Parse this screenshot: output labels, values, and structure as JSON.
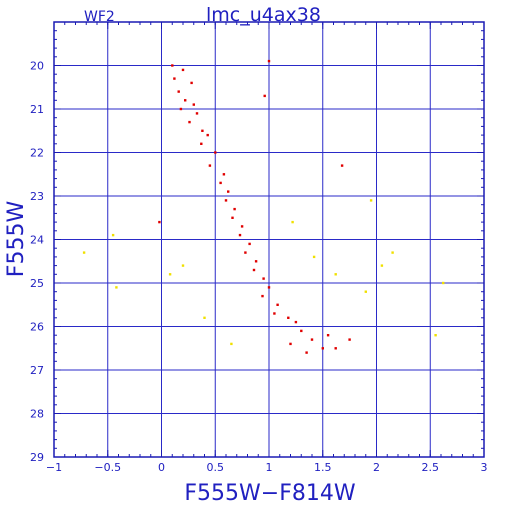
{
  "chart_data": {
    "type": "scatter",
    "title": "lmc_u4ax38",
    "chip_label": "WF2",
    "xlabel": "F555W−F814W",
    "ylabel": "F555W",
    "xlim": [
      -1,
      3
    ],
    "ylim": [
      29,
      19
    ],
    "y_inverted": true,
    "grid": true,
    "x_ticks": [
      "−1",
      "−0.5",
      "0",
      "0.5",
      "1",
      "1.5",
      "2",
      "2.5",
      "3"
    ],
    "y_ticks": [
      "20",
      "21",
      "22",
      "23",
      "24",
      "25",
      "26",
      "27",
      "28",
      "29"
    ],
    "colors": {
      "frame": "#1a1ab4",
      "grid": "#2a2ac8",
      "text": "#2020c0",
      "series_main": "#e00000",
      "series_secondary": "#f0e000"
    },
    "series": [
      {
        "color": "#e00000",
        "points": [
          [
            0.1,
            20.0
          ],
          [
            0.2,
            20.1
          ],
          [
            0.12,
            20.3
          ],
          [
            0.28,
            20.4
          ],
          [
            0.16,
            20.6
          ],
          [
            0.22,
            20.8
          ],
          [
            0.3,
            20.9
          ],
          [
            0.18,
            21.0
          ],
          [
            0.33,
            21.1
          ],
          [
            0.26,
            21.3
          ],
          [
            0.38,
            21.5
          ],
          [
            0.43,
            21.6
          ],
          [
            0.37,
            21.8
          ],
          [
            0.5,
            22.0
          ],
          [
            0.45,
            22.3
          ],
          [
            0.58,
            22.5
          ],
          [
            0.55,
            22.7
          ],
          [
            0.62,
            22.9
          ],
          [
            0.6,
            23.1
          ],
          [
            0.68,
            23.3
          ],
          [
            0.66,
            23.5
          ],
          [
            0.75,
            23.7
          ],
          [
            0.73,
            23.9
          ],
          [
            0.82,
            24.1
          ],
          [
            0.78,
            24.3
          ],
          [
            0.88,
            24.5
          ],
          [
            0.86,
            24.7
          ],
          [
            0.95,
            24.9
          ],
          [
            1.0,
            25.1
          ],
          [
            0.94,
            25.3
          ],
          [
            1.08,
            25.5
          ],
          [
            1.05,
            25.7
          ],
          [
            1.18,
            25.8
          ],
          [
            1.25,
            25.9
          ],
          [
            1.3,
            26.1
          ],
          [
            1.4,
            26.3
          ],
          [
            1.5,
            26.5
          ],
          [
            1.2,
            26.4
          ],
          [
            1.62,
            26.5
          ],
          [
            1.55,
            26.2
          ],
          [
            1.35,
            26.6
          ],
          [
            1.75,
            26.3
          ],
          [
            0.96,
            20.7
          ],
          [
            1.0,
            19.9
          ],
          [
            -0.02,
            23.6
          ],
          [
            1.68,
            22.3
          ]
        ]
      },
      {
        "color": "#f0e000",
        "points": [
          [
            -0.72,
            24.3
          ],
          [
            -0.45,
            23.9
          ],
          [
            -0.42,
            25.1
          ],
          [
            0.08,
            24.8
          ],
          [
            0.2,
            24.6
          ],
          [
            0.4,
            25.8
          ],
          [
            0.65,
            26.4
          ],
          [
            1.22,
            23.6
          ],
          [
            1.42,
            24.4
          ],
          [
            1.62,
            24.8
          ],
          [
            1.9,
            25.2
          ],
          [
            2.05,
            24.6
          ],
          [
            2.15,
            24.3
          ],
          [
            2.55,
            26.2
          ],
          [
            2.62,
            25.0
          ],
          [
            1.95,
            23.1
          ]
        ]
      }
    ]
  }
}
